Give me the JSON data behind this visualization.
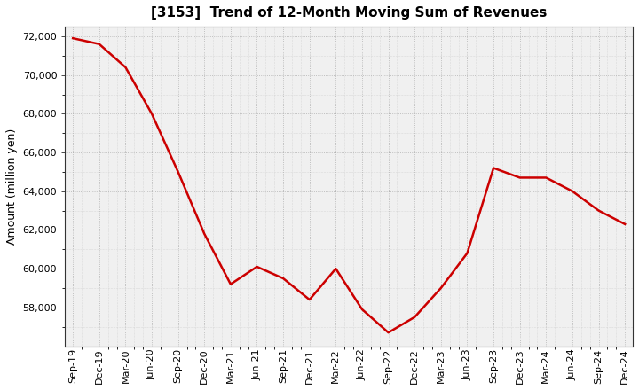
{
  "title": "[3153]  Trend of 12-Month Moving Sum of Revenues",
  "ylabel": "Amount (million yen)",
  "fig_background": "#ffffff",
  "plot_background": "#f0f0f0",
  "line_color": "#cc0000",
  "grid_color": "#aaaaaa",
  "x_labels": [
    "Sep-19",
    "Dec-19",
    "Mar-20",
    "Jun-20",
    "Sep-20",
    "Dec-20",
    "Mar-21",
    "Jun-21",
    "Sep-21",
    "Dec-21",
    "Mar-22",
    "Jun-22",
    "Sep-22",
    "Dec-22",
    "Mar-23",
    "Jun-23",
    "Sep-23",
    "Dec-23",
    "Mar-24",
    "Jun-24",
    "Sep-24",
    "Dec-24"
  ],
  "y_values": [
    71900,
    71600,
    70400,
    68000,
    65000,
    61800,
    59200,
    60100,
    59500,
    58400,
    60000,
    57900,
    56700,
    57500,
    59000,
    60800,
    65200,
    64700,
    64700,
    64000,
    63000,
    62300
  ],
  "ylim_min": 56000,
  "ylim_max": 72500,
  "yticks": [
    58000,
    60000,
    62000,
    64000,
    66000,
    68000,
    70000,
    72000
  ],
  "line_width": 1.8,
  "title_fontsize": 11,
  "label_fontsize": 9,
  "tick_fontsize": 8
}
